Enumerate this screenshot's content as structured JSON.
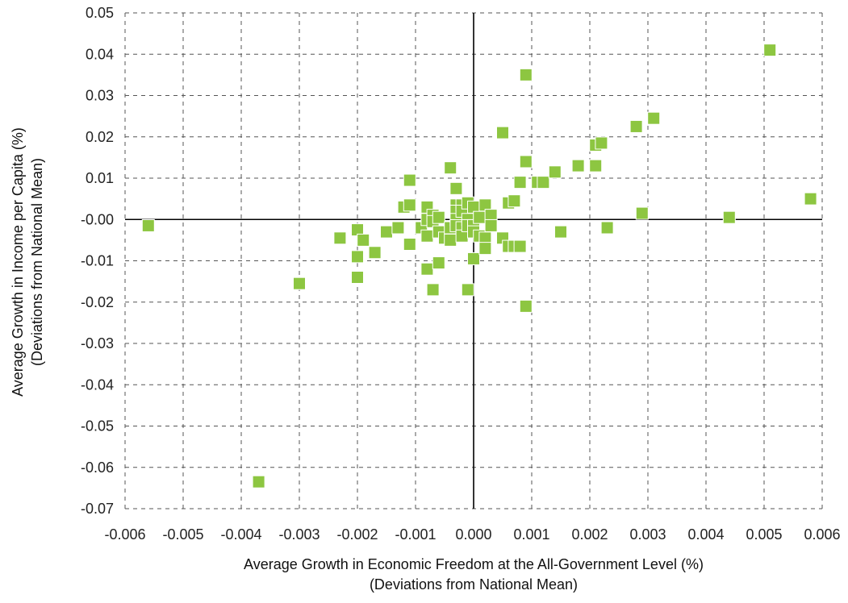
{
  "chart_data": {
    "type": "scatter",
    "xlabel_lines": [
      "Average Growth in Economic Freedom at the All-Government Level (%)",
      "(Deviations from National Mean)"
    ],
    "ylabel_lines": [
      "Average Growth in Income per Capita (%)",
      "(Deviations from National Mean)"
    ],
    "xlim": [
      -0.006,
      0.006
    ],
    "ylim": [
      -0.07,
      0.05
    ],
    "x_ticks": [
      "-0.006",
      "-0.005",
      "-0.004",
      "-0.003",
      "-0.002",
      "-0.001",
      "0.000",
      "0.001",
      "0.002",
      "0.003",
      "0.004",
      "0.005",
      "0.006"
    ],
    "y_ticks": [
      "0.05",
      "0.04",
      "0.03",
      "0.02",
      "0.01",
      "-0.00",
      "-0.01",
      "-0.02",
      "-0.03",
      "-0.04",
      "-0.05",
      "-0.06",
      "-0.07"
    ],
    "grid": "dashed",
    "marker_color": "#8dc641",
    "points": [
      [
        -0.0056,
        -0.0015
      ],
      [
        -0.0037,
        -0.0635
      ],
      [
        -0.003,
        -0.0155
      ],
      [
        -0.0023,
        -0.0045
      ],
      [
        -0.002,
        -0.0025
      ],
      [
        -0.002,
        -0.009
      ],
      [
        -0.002,
        -0.014
      ],
      [
        -0.0019,
        -0.005
      ],
      [
        -0.0017,
        -0.008
      ],
      [
        -0.0015,
        -0.003
      ],
      [
        -0.0013,
        -0.002
      ],
      [
        -0.0012,
        0.003
      ],
      [
        -0.0011,
        0.0035
      ],
      [
        -0.0011,
        -0.006
      ],
      [
        -0.0011,
        0.0095
      ],
      [
        -0.0009,
        -0.002
      ],
      [
        -0.0008,
        0.003
      ],
      [
        -0.0008,
        0.0
      ],
      [
        -0.0008,
        -0.004
      ],
      [
        -0.0008,
        -0.012
      ],
      [
        -0.0007,
        0.001
      ],
      [
        -0.0007,
        -0.0005
      ],
      [
        -0.0007,
        -0.017
      ],
      [
        -0.0006,
        0.0005
      ],
      [
        -0.0006,
        -0.003
      ],
      [
        -0.0006,
        -0.0105
      ],
      [
        -0.0005,
        -0.0045
      ],
      [
        -0.0004,
        0.0125
      ],
      [
        -0.0004,
        -0.002
      ],
      [
        -0.0004,
        -0.005
      ],
      [
        -0.0003,
        0.0075
      ],
      [
        -0.0003,
        0.0035
      ],
      [
        -0.0003,
        0.002
      ],
      [
        -0.0003,
        0.0
      ],
      [
        -0.0003,
        -0.0015
      ],
      [
        -0.0002,
        0.0035
      ],
      [
        -0.0002,
        0.002
      ],
      [
        -0.0002,
        -0.002
      ],
      [
        -0.0002,
        -0.004
      ],
      [
        -0.0001,
        0.004
      ],
      [
        -0.0001,
        0.0
      ],
      [
        -0.0001,
        -0.0015
      ],
      [
        -0.0001,
        -0.017
      ],
      [
        0.0,
        0.003
      ],
      [
        0.0,
        -0.0015
      ],
      [
        0.0,
        -0.003
      ],
      [
        0.0,
        -0.0095
      ],
      [
        0.0001,
        0.0005
      ],
      [
        0.0001,
        -0.004
      ],
      [
        0.0002,
        0.0035
      ],
      [
        0.0002,
        -0.0045
      ],
      [
        0.0002,
        -0.007
      ],
      [
        0.0003,
        0.001
      ],
      [
        0.0003,
        -0.0015
      ],
      [
        0.0005,
        0.021
      ],
      [
        0.0005,
        -0.0045
      ],
      [
        0.0006,
        0.004
      ],
      [
        0.0006,
        -0.0065
      ],
      [
        0.0007,
        0.0045
      ],
      [
        0.0007,
        -0.0065
      ],
      [
        0.0008,
        0.009
      ],
      [
        0.0008,
        -0.0065
      ],
      [
        0.0009,
        0.035
      ],
      [
        0.0009,
        0.014
      ],
      [
        0.0009,
        -0.021
      ],
      [
        0.0011,
        0.009
      ],
      [
        0.0012,
        0.009
      ],
      [
        0.0014,
        0.0115
      ],
      [
        0.0015,
        -0.003
      ],
      [
        0.0018,
        0.013
      ],
      [
        0.0021,
        0.018
      ],
      [
        0.0021,
        0.013
      ],
      [
        0.0022,
        0.0185
      ],
      [
        0.0023,
        -0.002
      ],
      [
        0.0028,
        0.0225
      ],
      [
        0.0029,
        0.0015
      ],
      [
        0.0031,
        0.0245
      ],
      [
        0.0044,
        0.0005
      ],
      [
        0.0051,
        0.041
      ],
      [
        0.0058,
        0.005
      ]
    ]
  }
}
